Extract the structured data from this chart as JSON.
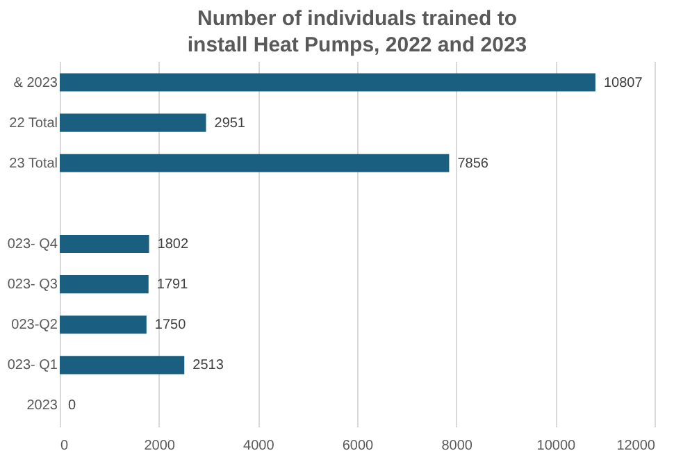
{
  "chart_data": {
    "type": "bar",
    "orientation": "horizontal",
    "title": "Number of individuals trained to install Heat Pumps, 2022 and 2023",
    "categories": [
      "& 2023",
      "22 Total",
      "23 Total",
      null,
      "023- Q4",
      "023- Q3",
      "023-Q2",
      "023- Q1",
      "2023"
    ],
    "values": [
      10807,
      2951,
      7856,
      null,
      1802,
      1791,
      1750,
      2513,
      0
    ],
    "color": "#1a5f80",
    "data_labels": true,
    "grid": "x",
    "xlim": [
      0,
      12000
    ],
    "xticks": [
      0,
      2000,
      4000,
      6000,
      8000,
      10000,
      12000
    ]
  }
}
